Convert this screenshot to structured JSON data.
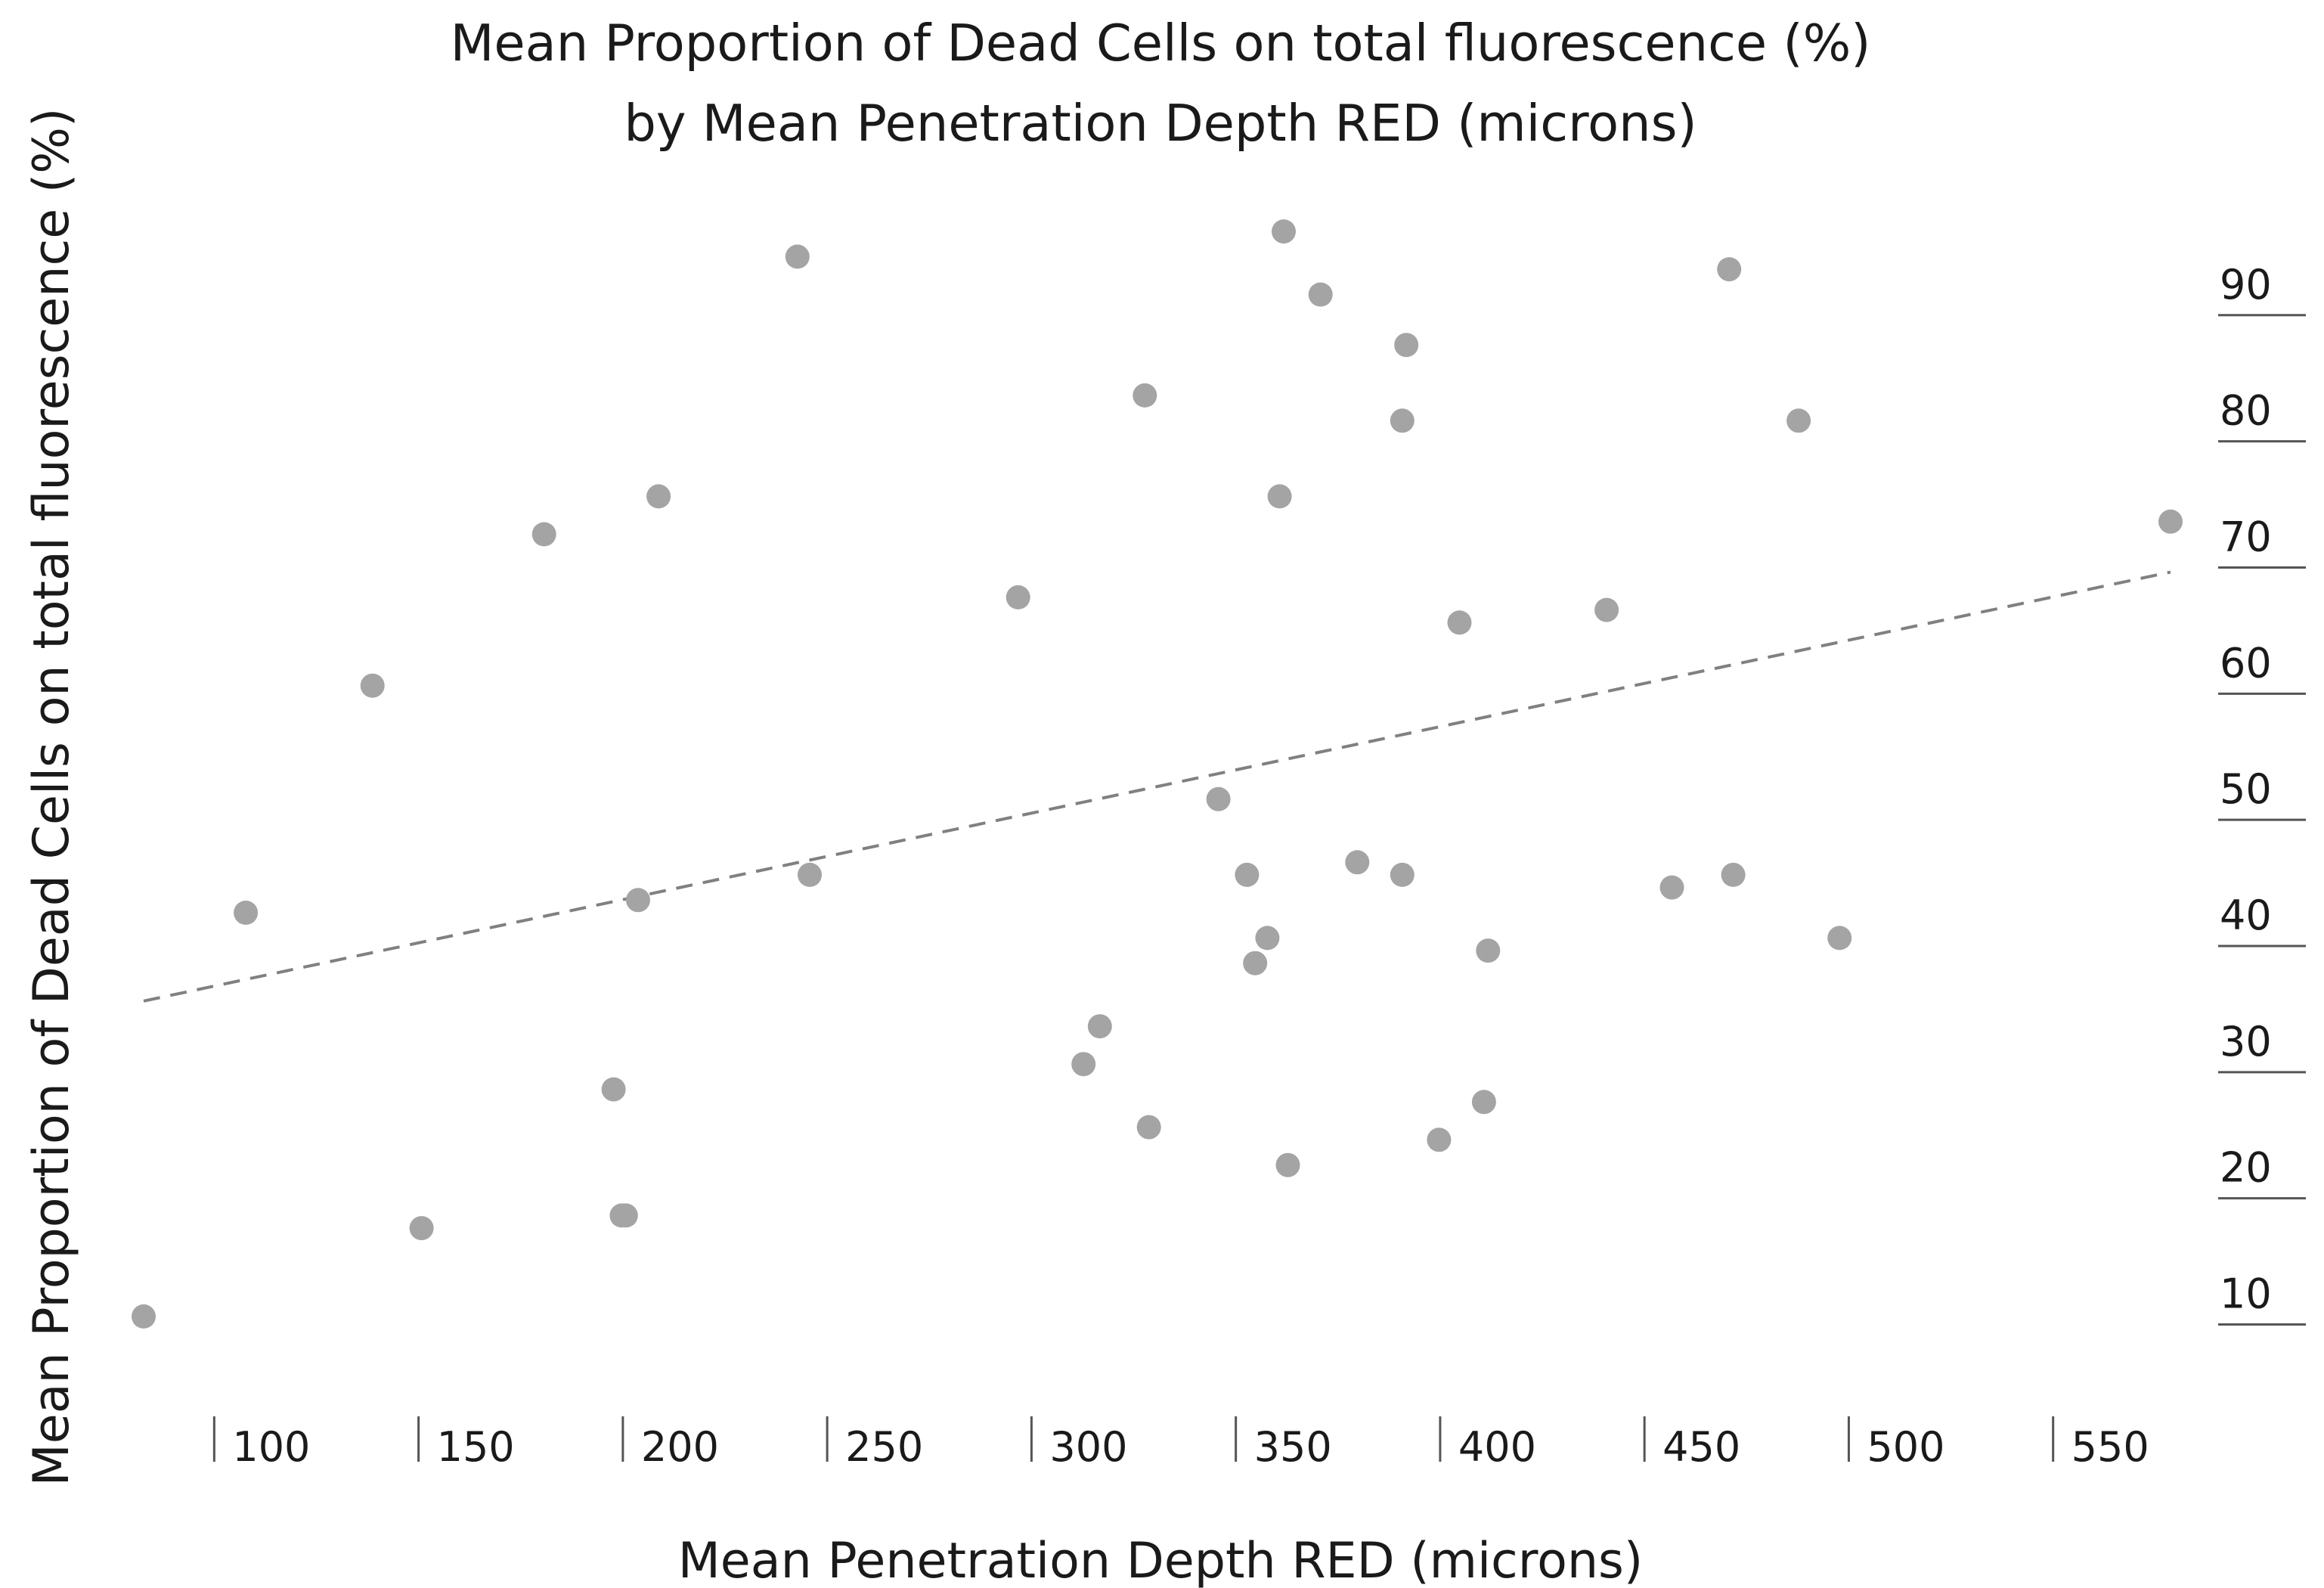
{
  "chart_data": {
    "type": "scatter",
    "title": [
      "Mean Proportion of Dead Cells on total fluorescence (%)",
      "by Mean Penetration Depth RED (microns)"
    ],
    "xlabel": "Mean Penetration Depth RED (microns)",
    "ylabel": "Mean Proportion of Dead Cells on total fluorescence (%)",
    "xlim": [
      72,
      573
    ],
    "ylim": [
      2,
      97
    ],
    "xticks": [
      100,
      150,
      200,
      250,
      300,
      350,
      400,
      450,
      500,
      550
    ],
    "yticks": [
      10,
      20,
      30,
      40,
      50,
      60,
      70,
      80,
      90
    ],
    "grid": false,
    "series": [
      {
        "name": "points",
        "x": [
          72,
          97,
          128,
          140,
          170,
          187,
          189,
          190,
          193,
          198,
          232,
          235,
          286,
          302,
          306,
          317,
          318,
          335,
          342,
          344,
          347,
          350,
          351,
          352,
          360,
          369,
          380,
          380,
          381,
          389,
          394,
          400,
          401,
          430,
          446,
          460,
          461,
          477,
          487,
          568
        ],
        "y": [
          8,
          40,
          58,
          15,
          70,
          26,
          16,
          16,
          41,
          73,
          92,
          43,
          65,
          28,
          31,
          81,
          23,
          49,
          43,
          36,
          38,
          73,
          94,
          20,
          89,
          44,
          79,
          43,
          85,
          22,
          63,
          25,
          37,
          64,
          42,
          91,
          43,
          79,
          38,
          71
        ]
      }
    ],
    "trendline": {
      "style": "dashed",
      "x": [
        72,
        568
      ],
      "y": [
        33,
        67
      ]
    }
  }
}
